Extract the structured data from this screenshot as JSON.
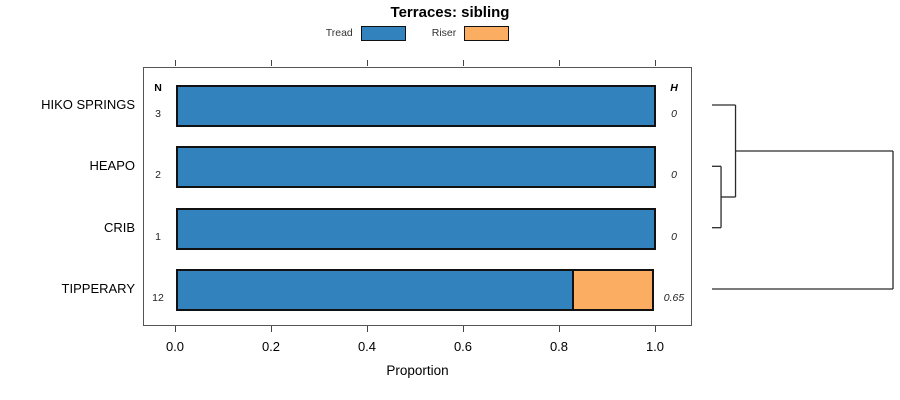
{
  "title": "Terraces: sibling",
  "colors": {
    "tread": "#3182BD",
    "riser": "#FBAE61",
    "bar_border": "#111111",
    "box_border": "#555555",
    "dendrogram_line": "#2a2a2a"
  },
  "legend": {
    "items": [
      {
        "label": "Tread",
        "color": "#3182BD"
      },
      {
        "label": "Riser",
        "color": "#FBAE61"
      }
    ]
  },
  "columns": {
    "n_header": "N",
    "h_header": "H"
  },
  "chart_data": {
    "type": "bar",
    "orientation": "horizontal",
    "stacked": true,
    "title": "Terraces: sibling",
    "xlabel": "Proportion",
    "xlim": [
      0,
      1
    ],
    "xticks": [
      0.0,
      0.2,
      0.4,
      0.6,
      0.8,
      1.0
    ],
    "xtick_labels": [
      "0.0",
      "0.2",
      "0.4",
      "0.6",
      "0.8",
      "1.0"
    ],
    "grid": false,
    "legend_position": "top",
    "categories": [
      "HIKO SPRINGS",
      "HEAPO",
      "CRIB",
      "TIPPERARY"
    ],
    "n_values": [
      "3",
      "2",
      "1",
      "12"
    ],
    "h_values": [
      "0",
      "0",
      "0",
      "0.65"
    ],
    "series": [
      {
        "name": "Tread",
        "color": "#3182BD",
        "values": [
          1.0,
          1.0,
          1.0,
          0.83
        ]
      },
      {
        "name": "Riser",
        "color": "#FBAE61",
        "values": [
          0.0,
          0.0,
          0.0,
          0.17
        ]
      }
    ],
    "dendrogram": {
      "leaves": [
        "HIKO SPRINGS",
        "HEAPO",
        "CRIB",
        "TIPPERARY"
      ],
      "structure": "((HIKO SPRINGS,(HEAPO,CRIB)),TIPPERARY)",
      "merges": [
        {
          "children": [
            "HEAPO",
            "CRIB"
          ],
          "height": 0.05
        },
        {
          "children": [
            "HIKO SPRINGS",
            "merge0"
          ],
          "height": 0.13
        },
        {
          "children": [
            "merge1",
            "TIPPERARY"
          ],
          "height": 1.0
        }
      ]
    }
  }
}
